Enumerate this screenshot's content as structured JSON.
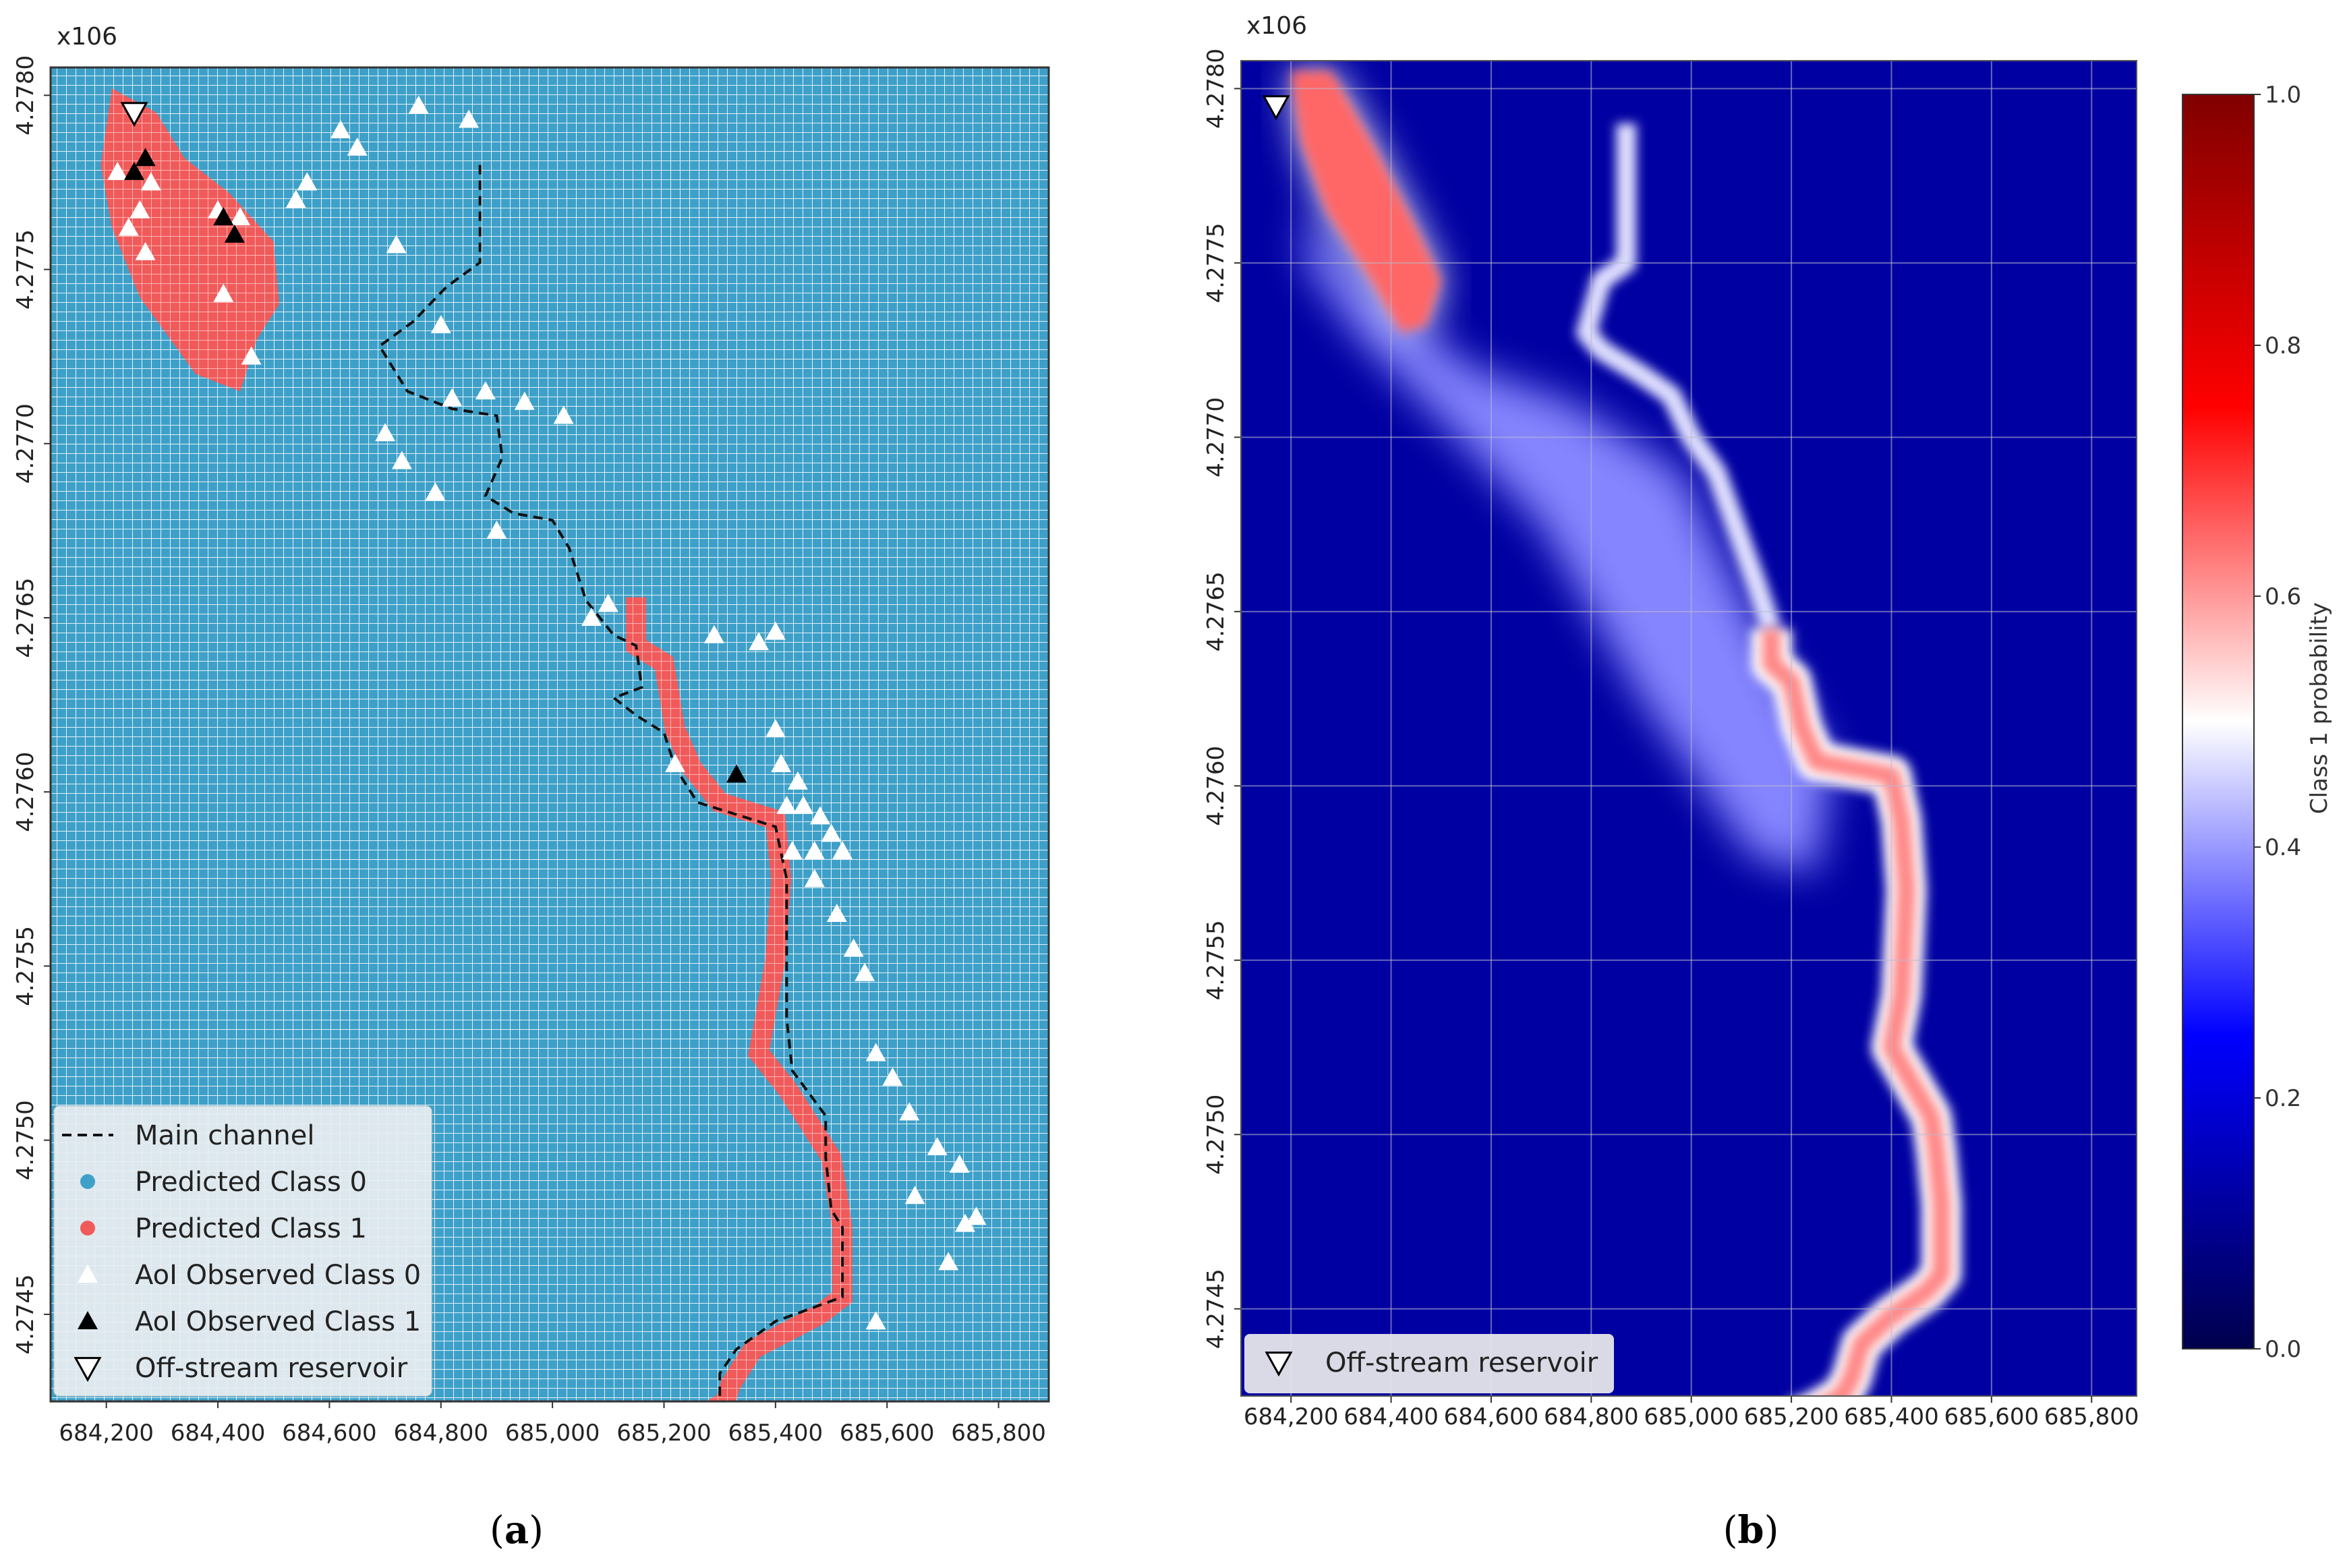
{
  "chart_data": [
    {
      "panel_label": "(a)",
      "panel_letter": "a",
      "type": "scatter",
      "offset_label": "x106",
      "x_ticks": [
        684200,
        684400,
        684600,
        684800,
        685000,
        685200,
        685400,
        685600,
        685800
      ],
      "x_tick_labels": [
        "684,200",
        "684,400",
        "684,600",
        "684,800",
        "685,000",
        "685,200",
        "685,400",
        "685,600",
        "685,800"
      ],
      "y_ticks": [
        4.2745,
        4.275,
        4.2755,
        4.276,
        4.2765,
        4.277,
        4.2775,
        4.278
      ],
      "y_tick_labels": [
        "4.2745",
        "4.2750",
        "4.2755",
        "4.2760",
        "4.2765",
        "4.2770",
        "4.2775",
        "4.2780"
      ],
      "xlim": [
        684100,
        685890
      ],
      "ylim": [
        4.27425,
        4.27808
      ],
      "background_class": "Predicted Class 0",
      "colors": {
        "class0": "#3ea0c8",
        "class1": "#f05a5a",
        "grid": "#ffffff"
      },
      "predicted_class1_regions": [
        {
          "name": "reservoir-area",
          "polygon": [
            [
              684210,
              4.27802
            ],
            [
              684290,
              4.27795
            ],
            [
              684340,
              4.27782
            ],
            [
              684420,
              4.27772
            ],
            [
              684500,
              4.27758
            ],
            [
              684510,
              4.2774
            ],
            [
              684470,
              4.2773
            ],
            [
              684440,
              4.27715
            ],
            [
              684360,
              4.2772
            ],
            [
              684260,
              4.27742
            ],
            [
              684210,
              4.27762
            ],
            [
              684190,
              4.2778
            ]
          ]
        }
      ],
      "predicted_class1_path": [
        [
          685150,
          4.27653
        ],
        [
          685150,
          4.27642
        ],
        [
          685200,
          4.27637
        ],
        [
          685220,
          4.27618
        ],
        [
          685250,
          4.27607
        ],
        [
          685300,
          4.27597
        ],
        [
          685400,
          4.27592
        ],
        [
          685410,
          4.27575
        ],
        [
          685400,
          4.27552
        ],
        [
          685370,
          4.27525
        ],
        [
          685420,
          4.27515
        ],
        [
          685460,
          4.27505
        ],
        [
          685500,
          4.27495
        ],
        [
          685520,
          4.27475
        ],
        [
          685520,
          4.27455
        ],
        [
          685480,
          4.2745
        ],
        [
          685360,
          4.2744
        ],
        [
          685320,
          4.2743
        ],
        [
          685310,
          4.27425
        ],
        [
          685260,
          4.2742
        ],
        [
          685210,
          4.27412
        ]
      ],
      "main_channel": [
        [
          684870,
          4.2778
        ],
        [
          684870,
          4.27752
        ],
        [
          684810,
          4.27745
        ],
        [
          684750,
          4.27735
        ],
        [
          684690,
          4.27728
        ],
        [
          684740,
          4.27715
        ],
        [
          684820,
          4.2771
        ],
        [
          684900,
          4.27708
        ],
        [
          684910,
          4.27696
        ],
        [
          684880,
          4.27685
        ],
        [
          684930,
          4.2768
        ],
        [
          685000,
          4.27678
        ],
        [
          685030,
          4.2767
        ],
        [
          685060,
          4.27655
        ],
        [
          685110,
          4.27645
        ],
        [
          685150,
          4.27642
        ],
        [
          685160,
          4.2763
        ],
        [
          685110,
          4.27627
        ],
        [
          685150,
          4.27622
        ],
        [
          685200,
          4.27617
        ],
        [
          685220,
          4.27607
        ],
        [
          685260,
          4.27597
        ],
        [
          685400,
          4.2759
        ],
        [
          685420,
          4.27575
        ],
        [
          685420,
          4.27535
        ],
        [
          685430,
          4.2752
        ],
        [
          685490,
          4.27507
        ],
        [
          685490,
          4.27495
        ],
        [
          685500,
          4.2748
        ],
        [
          685520,
          4.27475
        ],
        [
          685520,
          4.27455
        ],
        [
          685400,
          4.27448
        ],
        [
          685330,
          4.2744
        ],
        [
          685300,
          4.27433
        ],
        [
          685300,
          4.27425
        ],
        [
          685260,
          4.27421
        ],
        [
          685210,
          4.27412
        ]
      ],
      "observed_class0": [
        [
          684220,
          4.27778
        ],
        [
          684260,
          4.27767
        ],
        [
          684280,
          4.27775
        ],
        [
          684240,
          4.27762
        ],
        [
          684270,
          4.27755
        ],
        [
          684400,
          4.27767
        ],
        [
          684440,
          4.27765
        ],
        [
          684410,
          4.27743
        ],
        [
          684460,
          4.27725
        ],
        [
          684540,
          4.2777
        ],
        [
          684560,
          4.27775
        ],
        [
          684620,
          4.2779
        ],
        [
          684650,
          4.27785
        ],
        [
          684760,
          4.27797
        ],
        [
          684850,
          4.27793
        ],
        [
          684720,
          4.27757
        ],
        [
          684800,
          4.27734
        ],
        [
          684820,
          4.27713
        ],
        [
          684880,
          4.27715
        ],
        [
          684950,
          4.27712
        ],
        [
          684700,
          4.27703
        ],
        [
          684730,
          4.27695
        ],
        [
          684790,
          4.27686
        ],
        [
          685020,
          4.27708
        ],
        [
          684900,
          4.27675
        ],
        [
          685070,
          4.2765
        ],
        [
          685220,
          4.27608
        ],
        [
          685370,
          4.27643
        ],
        [
          685400,
          4.27618
        ],
        [
          685410,
          4.27608
        ],
        [
          685420,
          4.27596
        ],
        [
          685440,
          4.27603
        ],
        [
          685450,
          4.27596
        ],
        [
          685430,
          4.27583
        ],
        [
          685500,
          4.27588
        ],
        [
          685520,
          4.27583
        ],
        [
          685470,
          4.27575
        ],
        [
          685510,
          4.27565
        ],
        [
          685540,
          4.27555
        ],
        [
          685560,
          4.27548
        ],
        [
          685580,
          4.27525
        ],
        [
          685610,
          4.27518
        ],
        [
          685640,
          4.27508
        ],
        [
          685690,
          4.27498
        ],
        [
          685650,
          4.27484
        ],
        [
          685730,
          4.27493
        ],
        [
          685740,
          4.27476
        ],
        [
          685760,
          4.27478
        ],
        [
          685710,
          4.27465
        ],
        [
          685580,
          4.27448
        ],
        [
          685470,
          4.27583
        ],
        [
          685480,
          4.27593
        ],
        [
          685100,
          4.27654
        ],
        [
          685290,
          4.27645
        ],
        [
          685400,
          4.27646
        ]
      ],
      "observed_class1": [
        [
          684250,
          4.27778
        ],
        [
          684270,
          4.27782
        ],
        [
          684410,
          4.27765
        ],
        [
          684430,
          4.2776
        ],
        [
          685330,
          4.27605
        ]
      ],
      "offstream_reservoir": [
        [
          684250,
          4.27795
        ]
      ],
      "legend": [
        {
          "label": "Main channel",
          "symbol": "dashed-line"
        },
        {
          "label": "Predicted Class 0",
          "symbol": "dot-blue"
        },
        {
          "label": "Predicted Class 1",
          "symbol": "dot-red"
        },
        {
          "label": "AoI Observed Class 0",
          "symbol": "triangle-white"
        },
        {
          "label": "AoI Observed Class 1",
          "symbol": "triangle-black"
        },
        {
          "label": "Off-stream reservoir",
          "symbol": "triangle-down-outline"
        }
      ],
      "legend_position": "lower-left"
    },
    {
      "panel_label": "(b)",
      "panel_letter": "b",
      "type": "heatmap",
      "offset_label": "x106",
      "x_ticks": [
        684200,
        684400,
        684600,
        684800,
        685000,
        685200,
        685400,
        685600,
        685800
      ],
      "x_tick_labels": [
        "684,200",
        "684,400",
        "684,600",
        "684,800",
        "685,000",
        "685,200",
        "685,400",
        "685,600",
        "685,800"
      ],
      "y_ticks": [
        4.2745,
        4.275,
        4.2755,
        4.276,
        4.2765,
        4.277,
        4.2775,
        4.278
      ],
      "y_tick_labels": [
        "4.2745",
        "4.2750",
        "4.2755",
        "4.2760",
        "4.2765",
        "4.2770",
        "4.2775",
        "4.2780"
      ],
      "xlim": [
        684100,
        685890
      ],
      "ylim": [
        4.27425,
        4.27808
      ],
      "grid": true,
      "colormap": "seismic",
      "colorbar": {
        "label": "Class 1 probability",
        "min": 0.0,
        "max": 1.0,
        "ticks": [
          0.0,
          0.2,
          0.4,
          0.6,
          0.8,
          1.0
        ],
        "tick_labels": [
          "0.0",
          "0.2",
          "0.4",
          "0.6",
          "0.8",
          "1.0"
        ],
        "stops": [
          {
            "value": 0.0,
            "color": "#00004c"
          },
          {
            "value": 0.25,
            "color": "#0000ff"
          },
          {
            "value": 0.5,
            "color": "#ffffff"
          },
          {
            "value": 0.75,
            "color": "#ff0000"
          },
          {
            "value": 1.0,
            "color": "#800000"
          }
        ]
      },
      "background_probability": 0.12,
      "high_probability_regions": [
        {
          "name": "reservoir-area",
          "probability": 0.65,
          "polygon": [
            [
              684200,
              4.27805
            ],
            [
              684280,
              4.27805
            ],
            [
              684360,
              4.27785
            ],
            [
              684440,
              4.27763
            ],
            [
              684500,
              4.27745
            ],
            [
              684470,
              4.27732
            ],
            [
              684420,
              4.2773
            ],
            [
              684360,
              4.27745
            ],
            [
              684270,
              4.27765
            ],
            [
              684220,
              4.27785
            ]
          ]
        }
      ],
      "high_probability_channel": {
        "probability": 0.62,
        "path": [
          [
            685160,
            4.27645
          ],
          [
            685160,
            4.27635
          ],
          [
            685200,
            4.2763
          ],
          [
            685220,
            4.27617
          ],
          [
            685250,
            4.27607
          ],
          [
            685400,
            4.27603
          ],
          [
            685420,
            4.2759
          ],
          [
            685430,
            4.2757
          ],
          [
            685420,
            4.2754
          ],
          [
            685400,
            4.27525
          ],
          [
            685440,
            4.27515
          ],
          [
            685480,
            4.27505
          ],
          [
            685490,
            4.27495
          ],
          [
            685500,
            4.2748
          ],
          [
            685500,
            4.2746
          ],
          [
            685470,
            4.27455
          ],
          [
            685400,
            4.27448
          ],
          [
            685340,
            4.2744
          ],
          [
            685320,
            4.2743
          ],
          [
            685300,
            4.27425
          ],
          [
            685240,
            4.2742
          ],
          [
            685200,
            4.27418
          ]
        ]
      },
      "upstream_channel": {
        "probability": 0.47,
        "path": [
          [
            684870,
            4.2779
          ],
          [
            684870,
            4.2775
          ],
          [
            684820,
            4.27745
          ],
          [
            684790,
            4.2773
          ],
          [
            684820,
            4.27725
          ],
          [
            684900,
            4.27718
          ],
          [
            684960,
            4.27712
          ],
          [
            685000,
            4.277
          ],
          [
            685050,
            4.2769
          ],
          [
            685100,
            4.2767
          ],
          [
            685130,
            4.27658
          ],
          [
            685160,
            4.27645
          ]
        ]
      },
      "medium_probability_region": {
        "probability": 0.38,
        "polygon": [
          [
            684230,
            4.27765
          ],
          [
            684380,
            4.2774
          ],
          [
            684560,
            4.2772
          ],
          [
            684760,
            4.2771
          ],
          [
            684980,
            4.2769
          ],
          [
            685150,
            4.2764
          ],
          [
            685280,
            4.27605
          ],
          [
            685250,
            4.27575
          ],
          [
            685120,
            4.2758
          ],
          [
            684900,
            4.27625
          ],
          [
            684700,
            4.27675
          ],
          [
            684500,
            4.27705
          ],
          [
            684330,
            4.2773
          ],
          [
            684230,
            4.2775
          ]
        ]
      },
      "offstream_reservoir": [
        [
          684170,
          4.27795
        ]
      ],
      "legend": [
        {
          "label": "Off-stream reservoir",
          "symbol": "triangle-down-outline"
        }
      ],
      "legend_position": "lower-left"
    }
  ]
}
